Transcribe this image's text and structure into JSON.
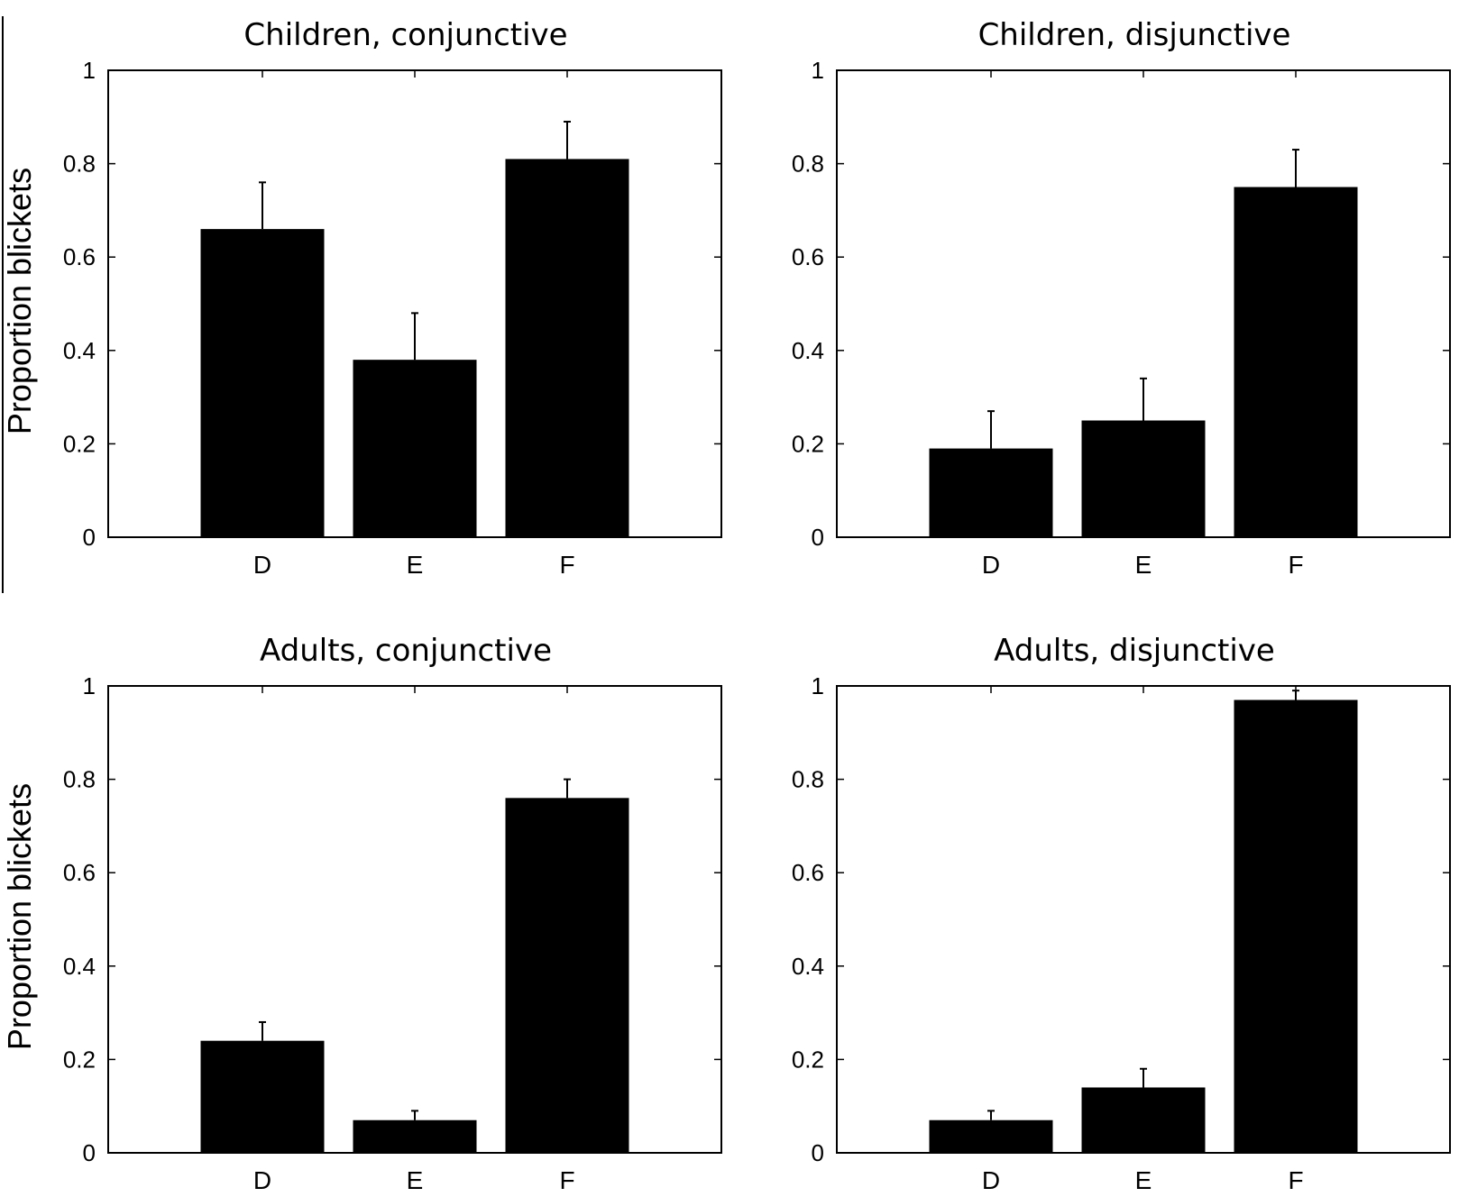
{
  "figure": {
    "panel_count": 4,
    "colors": {
      "bar": "#000000",
      "axis": "#000000",
      "background": "#ffffff"
    }
  },
  "chart_data": [
    {
      "type": "bar",
      "title": "Children, conjunctive",
      "ylabel": "Proportion blickets",
      "xlabel": "",
      "categories": [
        "D",
        "E",
        "F"
      ],
      "values": [
        0.66,
        0.38,
        0.81
      ],
      "errors": [
        0.1,
        0.1,
        0.08
      ],
      "ylim": [
        0,
        1
      ],
      "yticks": [
        0,
        0.2,
        0.4,
        0.6,
        0.8,
        1
      ],
      "ytick_labels": [
        "0",
        "0.2",
        "0.4",
        "0.6",
        "0.8",
        "1"
      ],
      "grid": false,
      "legend": false
    },
    {
      "type": "bar",
      "title": "Children, disjunctive",
      "ylabel": "",
      "xlabel": "",
      "categories": [
        "D",
        "E",
        "F"
      ],
      "values": [
        0.19,
        0.25,
        0.75
      ],
      "errors": [
        0.08,
        0.09,
        0.08
      ],
      "ylim": [
        0,
        1
      ],
      "yticks": [
        0,
        0.2,
        0.4,
        0.6,
        0.8,
        1
      ],
      "ytick_labels": [
        "0",
        "0.2",
        "0.4",
        "0.6",
        "0.8",
        "1"
      ],
      "grid": false,
      "legend": false
    },
    {
      "type": "bar",
      "title": "Adults, conjunctive",
      "ylabel": "Proportion blickets",
      "xlabel": "",
      "categories": [
        "D",
        "E",
        "F"
      ],
      "values": [
        0.24,
        0.07,
        0.76
      ],
      "errors": [
        0.04,
        0.02,
        0.04
      ],
      "ylim": [
        0,
        1
      ],
      "yticks": [
        0,
        0.2,
        0.4,
        0.6,
        0.8,
        1
      ],
      "ytick_labels": [
        "0",
        "0.2",
        "0.4",
        "0.6",
        "0.8",
        "1"
      ],
      "grid": false,
      "legend": false
    },
    {
      "type": "bar",
      "title": "Adults, disjunctive",
      "ylabel": "",
      "xlabel": "",
      "categories": [
        "D",
        "E",
        "F"
      ],
      "values": [
        0.07,
        0.14,
        0.97
      ],
      "errors": [
        0.02,
        0.04,
        0.02
      ],
      "ylim": [
        0,
        1
      ],
      "yticks": [
        0,
        0.2,
        0.4,
        0.6,
        0.8,
        1
      ],
      "ytick_labels": [
        "0",
        "0.2",
        "0.4",
        "0.6",
        "0.8",
        "1"
      ],
      "grid": false,
      "legend": false
    }
  ]
}
